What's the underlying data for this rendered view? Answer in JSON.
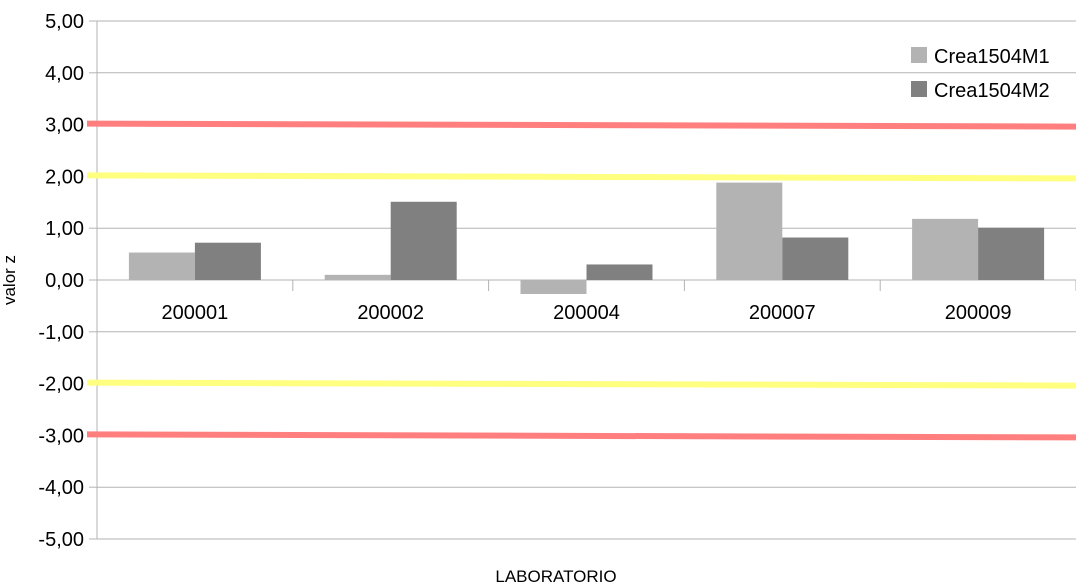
{
  "chart_data": {
    "type": "bar",
    "xlabel": "LABORATORIO",
    "ylabel": "valor z",
    "ylim": [
      -5,
      5
    ],
    "yticks": [
      5,
      4,
      3,
      2,
      1,
      0,
      -1,
      -2,
      -3,
      -4,
      -5
    ],
    "ytick_labels": [
      "5,00",
      "4,00",
      "3,00",
      "2,00",
      "1,00",
      "0,00",
      "-1,00",
      "-2,00",
      "-3,00",
      "-4,00",
      "-5,00"
    ],
    "categories": [
      "200001",
      "200002",
      "200004",
      "200007",
      "200009"
    ],
    "series": [
      {
        "name": "Crea1504M1",
        "color": "#b3b3b3",
        "values": [
          0.53,
          0.1,
          -0.27,
          1.88,
          1.18
        ]
      },
      {
        "name": "Crea1504M2",
        "color": "#808080",
        "values": [
          0.72,
          1.51,
          0.3,
          0.82,
          1.01
        ]
      }
    ],
    "reference_lines": [
      {
        "y": 3,
        "color": "#ff7f7f"
      },
      {
        "y": 2,
        "color": "#ffff80"
      },
      {
        "y": -2,
        "color": "#ffff80"
      },
      {
        "y": -3,
        "color": "#ff7f7f"
      }
    ],
    "grid": true,
    "legend_position": "top-right"
  }
}
